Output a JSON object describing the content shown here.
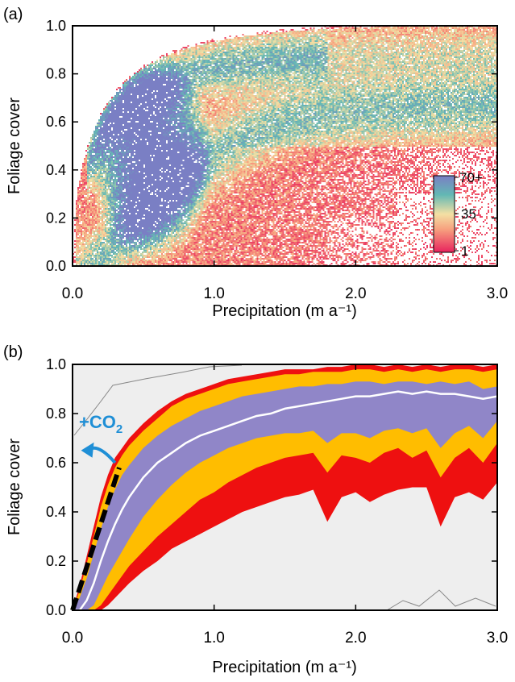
{
  "panel_a": {
    "label": "(a)",
    "colorbar": {
      "labels": [
        "70+",
        "35",
        "1"
      ]
    }
  },
  "panel_b": {
    "label": "(b)",
    "annotation": {
      "main": "+CO",
      "sub": "2"
    }
  },
  "colors": {
    "low": "#e8235e",
    "mid": "#f3e0a4",
    "high": "#7a7fc4",
    "red": "#ee1010",
    "orange": "#ffbd00",
    "purple": "#9086c8",
    "grey": "#eeeeee",
    "arrow": "#1f8fd6"
  },
  "chart_data": [
    {
      "type": "heatmap",
      "xlabel": "Precipitation (m a⁻¹)",
      "ylabel": "Foliage cover",
      "xlim": [
        0.0,
        3.0
      ],
      "ylim": [
        0.0,
        1.0
      ],
      "x_ticks": [
        "0.0",
        "1.0",
        "2.0",
        "3.0"
      ],
      "y_ticks": [
        "0.0",
        "0.2",
        "0.4",
        "0.6",
        "0.8",
        "1.0"
      ],
      "colorbar": {
        "min": 1,
        "mid": 35,
        "max": "70+"
      }
    },
    {
      "type": "area",
      "xlabel": "Precipitation (m a⁻¹)",
      "ylabel": "Foliage cover",
      "xlim": [
        0.0,
        3.0
      ],
      "ylim": [
        0.0,
        1.0
      ],
      "x_ticks": [
        "0.0",
        "1.0",
        "2.0",
        "3.0"
      ],
      "y_ticks": [
        "0.0",
        "0.2",
        "0.4",
        "0.6",
        "0.8",
        "1.0"
      ],
      "x": [
        0.0,
        0.05,
        0.1,
        0.15,
        0.2,
        0.25,
        0.3,
        0.35,
        0.4,
        0.5,
        0.6,
        0.7,
        0.8,
        0.9,
        1.0,
        1.1,
        1.2,
        1.3,
        1.4,
        1.5,
        1.6,
        1.7,
        1.8,
        1.9,
        2.0,
        2.1,
        2.2,
        2.3,
        2.4,
        2.5,
        2.6,
        2.7,
        2.8,
        2.9,
        3.0
      ],
      "bands": [
        {
          "upper": [
            0.0,
            0.1,
            0.22,
            0.34,
            0.46,
            0.55,
            0.62,
            0.66,
            0.7,
            0.76,
            0.81,
            0.85,
            0.88,
            0.9,
            0.92,
            0.94,
            0.95,
            0.96,
            0.97,
            0.98,
            0.98,
            0.98,
            0.99,
            0.99,
            1.0,
            1.0,
            0.99,
            1.0,
            0.99,
            1.0,
            0.99,
            1.0,
            1.0,
            0.99,
            1.0
          ],
          "lower": [
            0.0,
            0.0,
            0.0,
            0.0,
            0.0,
            0.02,
            0.05,
            0.08,
            0.11,
            0.16,
            0.2,
            0.25,
            0.28,
            0.31,
            0.34,
            0.37,
            0.4,
            0.42,
            0.44,
            0.46,
            0.47,
            0.49,
            0.36,
            0.46,
            0.48,
            0.44,
            0.47,
            0.49,
            0.5,
            0.5,
            0.34,
            0.46,
            0.48,
            0.45,
            0.52
          ]
        },
        {
          "upper": [
            0.0,
            0.08,
            0.19,
            0.3,
            0.42,
            0.51,
            0.58,
            0.63,
            0.67,
            0.73,
            0.78,
            0.83,
            0.86,
            0.88,
            0.9,
            0.92,
            0.93,
            0.94,
            0.95,
            0.96,
            0.96,
            0.97,
            0.97,
            0.97,
            0.98,
            0.98,
            0.97,
            0.98,
            0.97,
            0.98,
            0.97,
            0.98,
            0.98,
            0.97,
            0.98
          ],
          "lower": [
            0.0,
            0.0,
            0.0,
            0.0,
            0.02,
            0.06,
            0.1,
            0.14,
            0.18,
            0.24,
            0.3,
            0.35,
            0.4,
            0.45,
            0.48,
            0.52,
            0.55,
            0.58,
            0.6,
            0.62,
            0.63,
            0.64,
            0.56,
            0.63,
            0.62,
            0.6,
            0.64,
            0.66,
            0.62,
            0.65,
            0.54,
            0.62,
            0.66,
            0.6,
            0.68
          ]
        },
        {
          "upper": [
            0.0,
            0.05,
            0.13,
            0.23,
            0.33,
            0.42,
            0.49,
            0.55,
            0.59,
            0.66,
            0.71,
            0.75,
            0.78,
            0.81,
            0.83,
            0.85,
            0.87,
            0.88,
            0.89,
            0.9,
            0.91,
            0.91,
            0.92,
            0.92,
            0.93,
            0.93,
            0.92,
            0.93,
            0.93,
            0.92,
            0.93,
            0.92,
            0.93,
            0.9,
            0.91
          ],
          "lower": [
            0.0,
            0.0,
            0.0,
            0.02,
            0.08,
            0.14,
            0.19,
            0.24,
            0.29,
            0.38,
            0.45,
            0.51,
            0.56,
            0.6,
            0.63,
            0.66,
            0.68,
            0.7,
            0.71,
            0.72,
            0.72,
            0.73,
            0.68,
            0.72,
            0.72,
            0.7,
            0.73,
            0.74,
            0.72,
            0.74,
            0.66,
            0.72,
            0.75,
            0.7,
            0.77
          ]
        }
      ],
      "median": [
        0.0,
        0.0,
        0.04,
        0.11,
        0.2,
        0.28,
        0.35,
        0.41,
        0.46,
        0.54,
        0.6,
        0.64,
        0.68,
        0.71,
        0.73,
        0.75,
        0.77,
        0.79,
        0.8,
        0.82,
        0.83,
        0.84,
        0.85,
        0.86,
        0.87,
        0.87,
        0.88,
        0.89,
        0.88,
        0.89,
        0.88,
        0.88,
        0.87,
        0.86,
        0.87
      ],
      "dashed_line": {
        "x": [
          0.0,
          0.33
        ],
        "y": [
          0.0,
          0.58
        ]
      },
      "arrow": {
        "from": [
          0.3,
          0.6
        ],
        "to": [
          0.06,
          0.66
        ]
      }
    }
  ]
}
